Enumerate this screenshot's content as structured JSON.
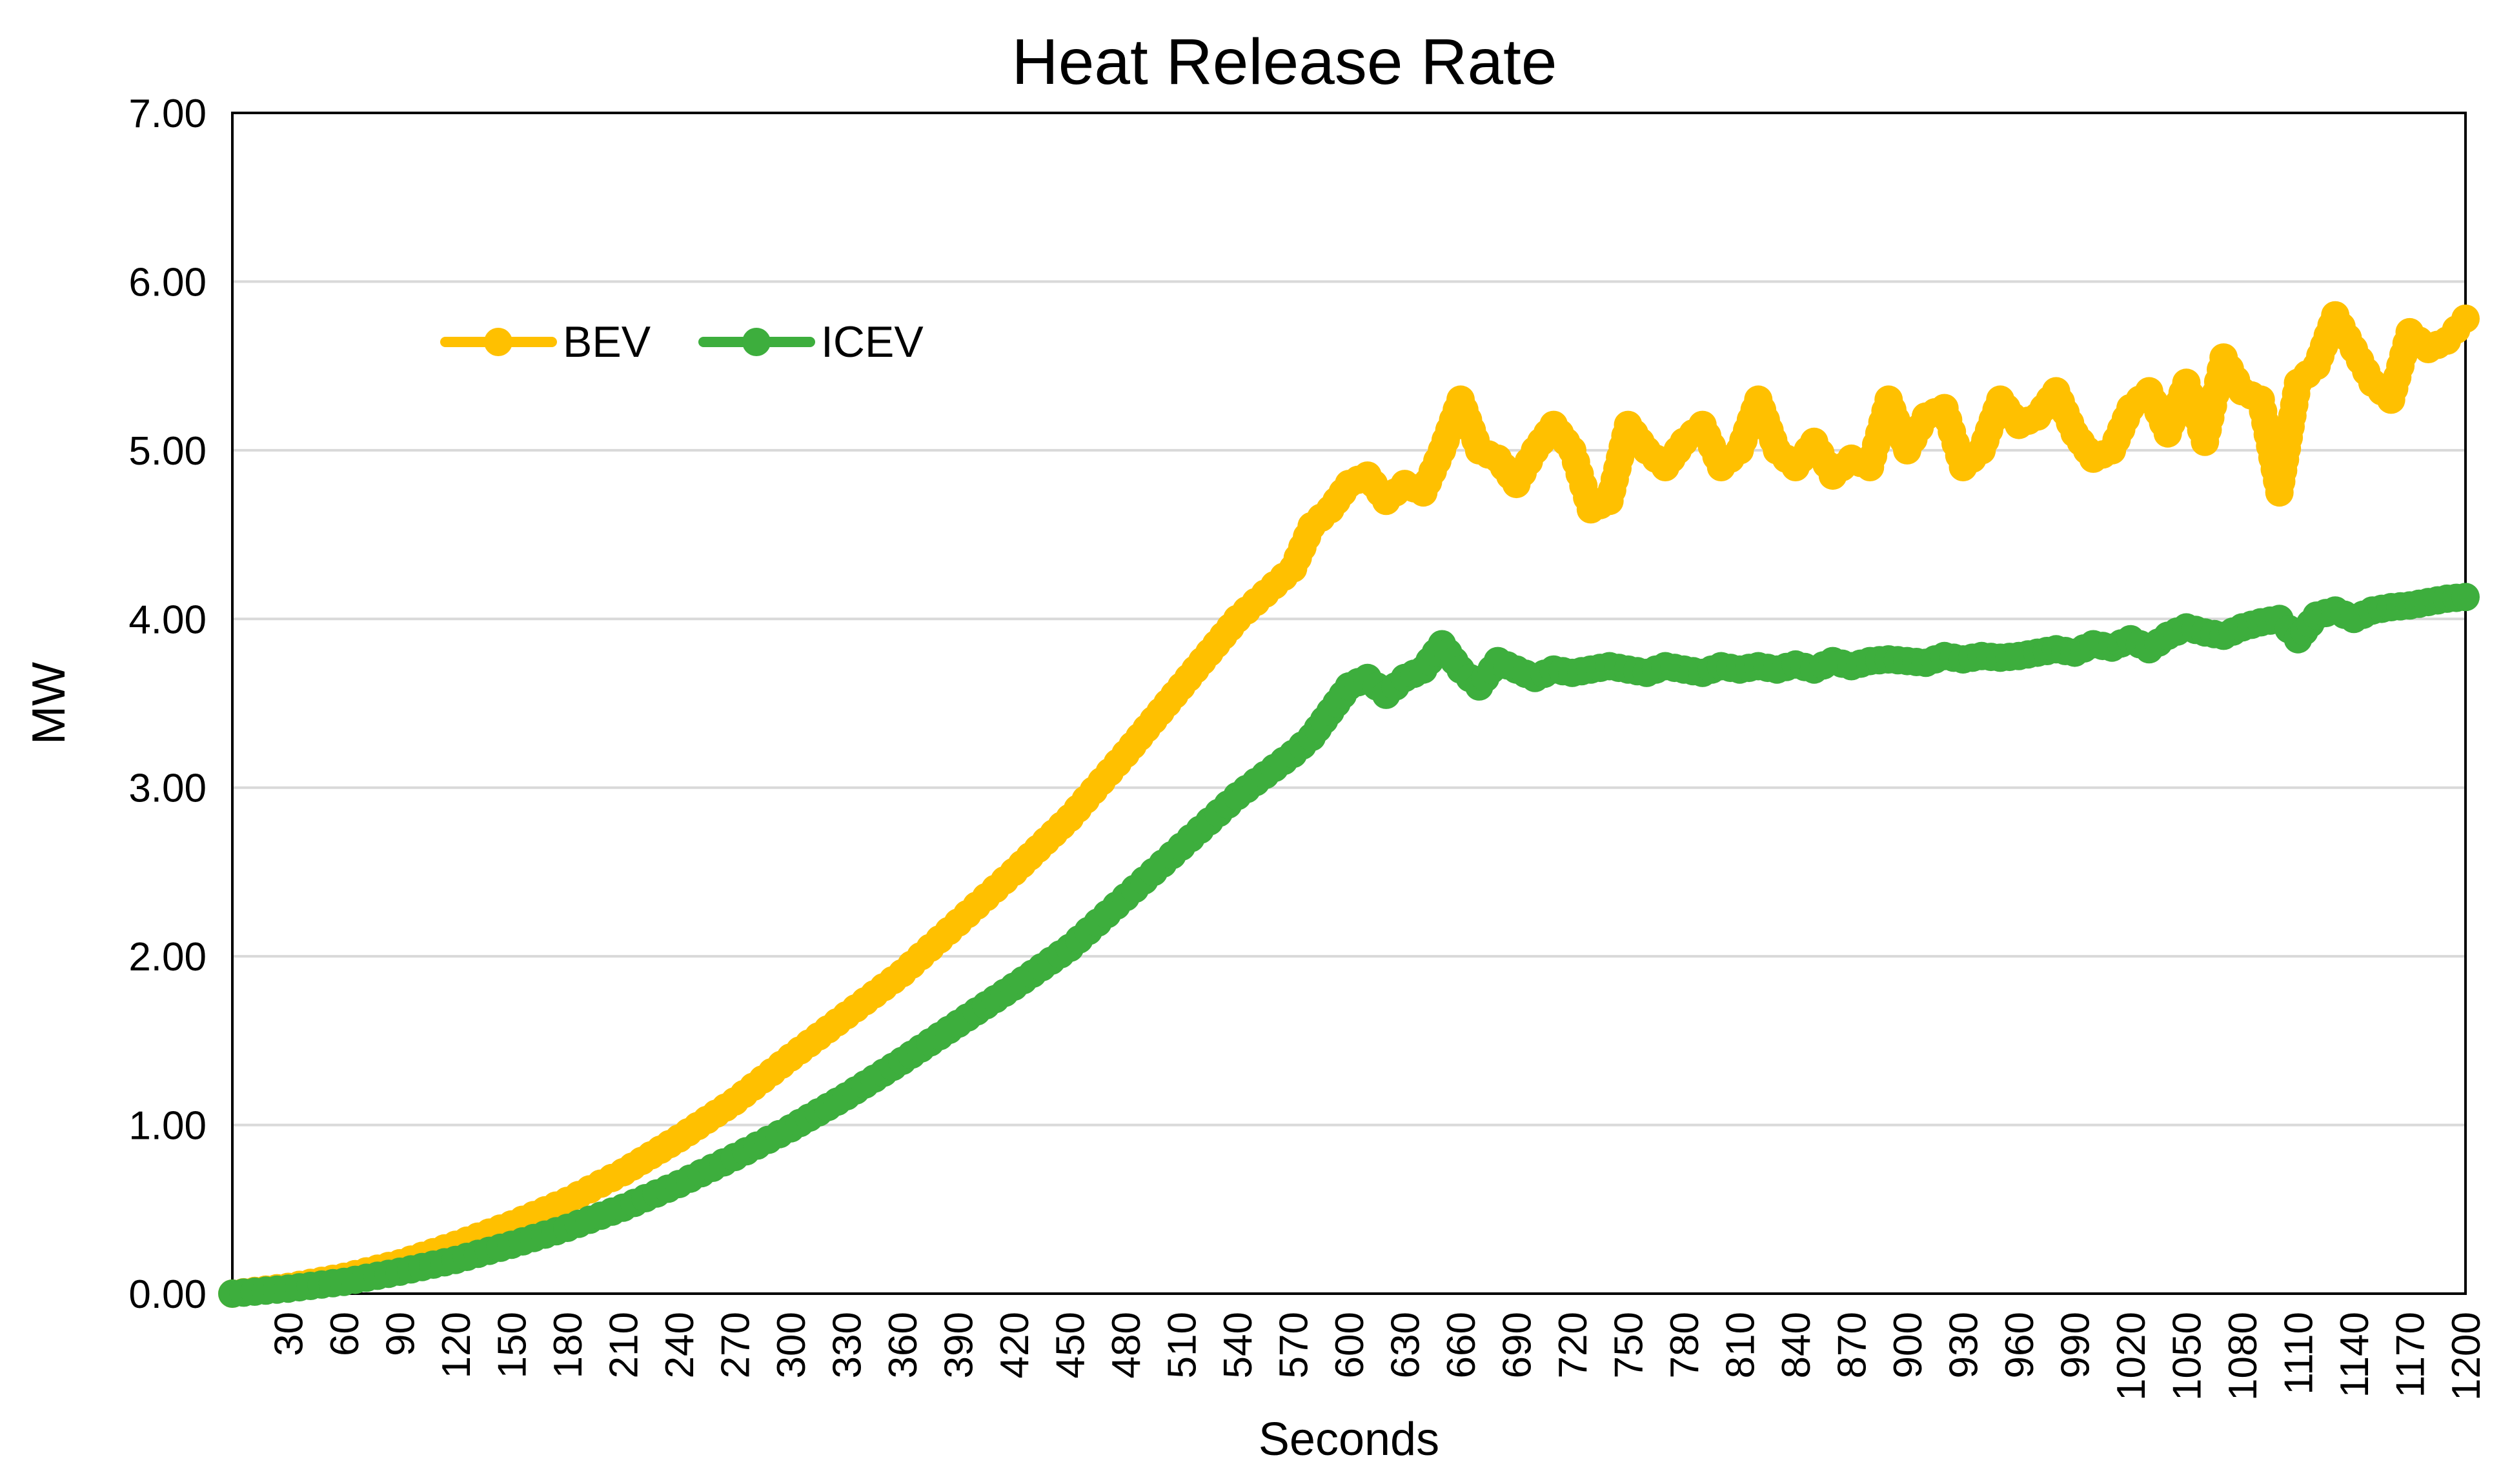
{
  "chart_data": {
    "type": "line",
    "title": "Heat Release Rate",
    "xlabel": "Seconds",
    "ylabel": "MW",
    "xlim": [
      0,
      1200
    ],
    "ylim": [
      0,
      7
    ],
    "grid": true,
    "legend_position": "top-left",
    "y_ticks": [
      "0.00",
      "1.00",
      "2.00",
      "3.00",
      "4.00",
      "5.00",
      "6.00",
      "7.00"
    ],
    "x_ticks": [
      "30",
      "60",
      "90",
      "120",
      "150",
      "180",
      "210",
      "240",
      "270",
      "300",
      "330",
      "360",
      "390",
      "420",
      "450",
      "480",
      "510",
      "540",
      "570",
      "600",
      "630",
      "660",
      "690",
      "720",
      "750",
      "780",
      "810",
      "840",
      "870",
      "900",
      "930",
      "960",
      "990",
      "1020",
      "1050",
      "1080",
      "1110",
      "1140",
      "1170",
      "1200"
    ],
    "series": [
      {
        "name": "BEV",
        "color": "#FFC000",
        "x": [
          0,
          30,
          60,
          90,
          120,
          150,
          180,
          210,
          240,
          270,
          300,
          330,
          360,
          390,
          420,
          450,
          480,
          510,
          540,
          570,
          580,
          590,
          600,
          610,
          620,
          630,
          640,
          650,
          660,
          670,
          680,
          690,
          700,
          710,
          720,
          730,
          740,
          750,
          760,
          770,
          780,
          790,
          800,
          810,
          820,
          830,
          840,
          850,
          860,
          870,
          880,
          890,
          900,
          910,
          920,
          930,
          940,
          950,
          960,
          970,
          980,
          990,
          1000,
          1010,
          1020,
          1030,
          1040,
          1050,
          1060,
          1070,
          1080,
          1090,
          1100,
          1110,
          1120,
          1130,
          1140,
          1150,
          1160,
          1170,
          1180,
          1190,
          1200
        ],
        "values": [
          0,
          0.04,
          0.1,
          0.18,
          0.29,
          0.41,
          0.55,
          0.72,
          0.92,
          1.14,
          1.4,
          1.65,
          1.9,
          2.2,
          2.5,
          2.82,
          3.2,
          3.6,
          4.0,
          4.3,
          4.55,
          4.65,
          4.8,
          4.85,
          4.7,
          4.8,
          4.75,
          5.0,
          5.3,
          5.0,
          4.95,
          4.8,
          5.0,
          5.15,
          5.0,
          4.65,
          4.7,
          5.15,
          5.0,
          4.9,
          5.05,
          5.15,
          4.9,
          5.0,
          5.3,
          5.0,
          4.9,
          5.05,
          4.85,
          4.95,
          4.9,
          5.3,
          5.0,
          5.2,
          5.25,
          4.9,
          5.0,
          5.3,
          5.15,
          5.2,
          5.35,
          5.1,
          4.95,
          5.0,
          5.25,
          5.35,
          5.1,
          5.4,
          5.05,
          5.55,
          5.35,
          5.3,
          4.75,
          5.4,
          5.5,
          5.8,
          5.6,
          5.4,
          5.3,
          5.7,
          5.6,
          5.65,
          5.78
        ]
      },
      {
        "name": "ICEV",
        "color": "#3DAE3D",
        "x": [
          0,
          30,
          60,
          90,
          120,
          150,
          180,
          210,
          240,
          270,
          300,
          330,
          360,
          390,
          420,
          450,
          480,
          510,
          540,
          570,
          580,
          590,
          600,
          610,
          620,
          630,
          640,
          650,
          660,
          670,
          680,
          690,
          700,
          710,
          720,
          730,
          740,
          750,
          760,
          770,
          780,
          790,
          800,
          810,
          820,
          830,
          840,
          850,
          860,
          870,
          880,
          890,
          900,
          910,
          920,
          930,
          940,
          950,
          960,
          970,
          980,
          990,
          1000,
          1010,
          1020,
          1030,
          1040,
          1050,
          1060,
          1070,
          1080,
          1090,
          1100,
          1110,
          1120,
          1130,
          1140,
          1150,
          1160,
          1170,
          1180,
          1190,
          1200
        ],
        "values": [
          0,
          0.03,
          0.07,
          0.13,
          0.2,
          0.29,
          0.39,
          0.51,
          0.65,
          0.81,
          0.98,
          1.17,
          1.38,
          1.6,
          1.82,
          2.05,
          2.35,
          2.65,
          2.95,
          3.2,
          3.3,
          3.45,
          3.6,
          3.65,
          3.55,
          3.65,
          3.7,
          3.85,
          3.7,
          3.6,
          3.75,
          3.7,
          3.65,
          3.7,
          3.68,
          3.7,
          3.72,
          3.7,
          3.68,
          3.72,
          3.7,
          3.68,
          3.72,
          3.7,
          3.72,
          3.7,
          3.73,
          3.7,
          3.75,
          3.72,
          3.75,
          3.76,
          3.75,
          3.74,
          3.78,
          3.76,
          3.78,
          3.77,
          3.78,
          3.8,
          3.82,
          3.8,
          3.85,
          3.83,
          3.88,
          3.82,
          3.9,
          3.95,
          3.92,
          3.9,
          3.95,
          3.98,
          4.0,
          3.88,
          4.02,
          4.05,
          4.0,
          4.05,
          4.07,
          4.08,
          4.1,
          4.12,
          4.13
        ]
      }
    ]
  }
}
